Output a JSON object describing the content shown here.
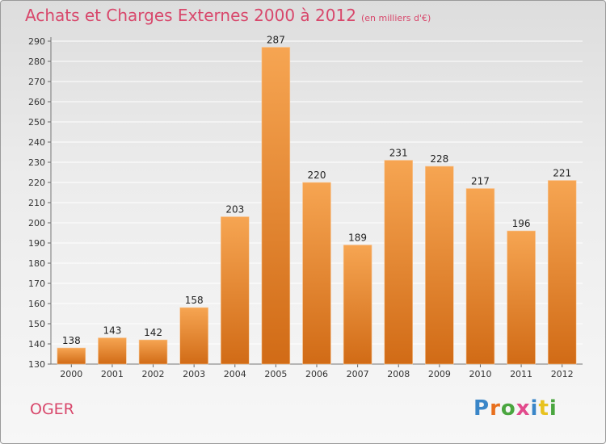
{
  "header": {
    "title": "Achats et Charges Externes 2000 à 2012",
    "unit": "(en milliers d'€)"
  },
  "footer": {
    "commune": "OGER",
    "logo_text": "Proxiti",
    "logo_colors": [
      "#3a86c8",
      "#e8701e",
      "#4aa63f",
      "#e24a8c",
      "#3a86c8",
      "#e8c21e",
      "#4aa63f"
    ]
  },
  "colors": {
    "bar_top": "#f6a552",
    "bar_bottom": "#d16b16",
    "title": "#d8476b",
    "grid": "#ffffff"
  },
  "chart_data": {
    "type": "bar",
    "title": "Achats et Charges Externes 2000 à 2012",
    "xlabel": "",
    "ylabel": "",
    "categories": [
      "2000",
      "2001",
      "2002",
      "2003",
      "2004",
      "2005",
      "2006",
      "2007",
      "2008",
      "2009",
      "2010",
      "2011",
      "2012"
    ],
    "values": [
      138,
      143,
      142,
      158,
      203,
      287,
      220,
      189,
      231,
      228,
      217,
      196,
      221
    ],
    "ylim": [
      130,
      290
    ],
    "yticks": [
      130,
      140,
      150,
      160,
      170,
      180,
      190,
      200,
      210,
      220,
      230,
      240,
      250,
      260,
      270,
      280,
      290
    ],
    "grid": true,
    "legend": "none"
  }
}
